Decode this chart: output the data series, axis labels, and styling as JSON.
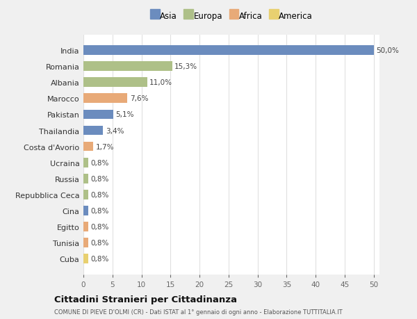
{
  "categories": [
    "India",
    "Romania",
    "Albania",
    "Marocco",
    "Pakistan",
    "Thailandia",
    "Costa d'Avorio",
    "Ucraina",
    "Russia",
    "Repubblica Ceca",
    "Cina",
    "Egitto",
    "Tunisia",
    "Cuba"
  ],
  "values": [
    50.0,
    15.3,
    11.0,
    7.6,
    5.1,
    3.4,
    1.7,
    0.8,
    0.8,
    0.8,
    0.8,
    0.8,
    0.8,
    0.8
  ],
  "labels": [
    "50,0%",
    "15,3%",
    "11,0%",
    "7,6%",
    "5,1%",
    "3,4%",
    "1,7%",
    "0,8%",
    "0,8%",
    "0,8%",
    "0,8%",
    "0,8%",
    "0,8%",
    "0,8%"
  ],
  "colors": [
    "#6b8cbe",
    "#aec088",
    "#aec088",
    "#e8aa78",
    "#6b8cbe",
    "#6b8cbe",
    "#e8aa78",
    "#aec088",
    "#aec088",
    "#aec088",
    "#6b8cbe",
    "#e8aa78",
    "#e8aa78",
    "#e8d070"
  ],
  "legend": [
    {
      "label": "Asia",
      "color": "#6b8cbe"
    },
    {
      "label": "Europa",
      "color": "#aec088"
    },
    {
      "label": "Africa",
      "color": "#e8aa78"
    },
    {
      "label": "America",
      "color": "#e8d070"
    }
  ],
  "xlim": [
    0,
    51
  ],
  "xticks": [
    0,
    5,
    10,
    15,
    20,
    25,
    30,
    35,
    40,
    45,
    50
  ],
  "title": "Cittadini Stranieri per Cittadinanza",
  "subtitle": "COMUNE DI PIEVE D'OLMI (CR) - Dati ISTAT al 1° gennaio di ogni anno - Elaborazione TUTTITALIA.IT",
  "bg_outer": "#f0f0f0",
  "bg_plot": "#ffffff",
  "grid_color": "#e0e0e0",
  "bar_height": 0.6
}
